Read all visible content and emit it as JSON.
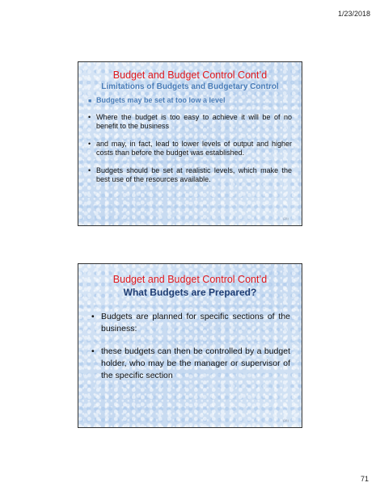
{
  "header": {
    "date": "1/23/2018"
  },
  "footer": {
    "page_number": "71"
  },
  "slides": [
    {
      "title": "Budget and Budget Control Cont’d",
      "subtitle": "Limitations of Budgets and Budgetary Control",
      "bullets": [
        "Budgets may be set at too low a level",
        "Where the budget is too easy to achieve it will be of no benefit to the business",
        "and may, in fact, lead to lower levels of output and higher costs than before the budget was established.",
        "Budgets should be set at realistic levels, which make the best use of the resources available."
      ],
      "footer_text": "(25)",
      "colors": {
        "title": "#e0191e",
        "subtitle": "#4a7db8",
        "highlight": "#4a7db8"
      }
    },
    {
      "title": "Budget and Budget Control Cont’d",
      "subtitle": "What Budgets are Prepared?",
      "bullets": [
        "Budgets are planned for specific sections of the business:",
        "these budgets can then be controlled by a budget holder, who may be the manager or supervisor of the specific section"
      ],
      "footer_text": "(26)",
      "colors": {
        "title": "#e0191e",
        "subtitle": "#1f3d73"
      }
    }
  ]
}
